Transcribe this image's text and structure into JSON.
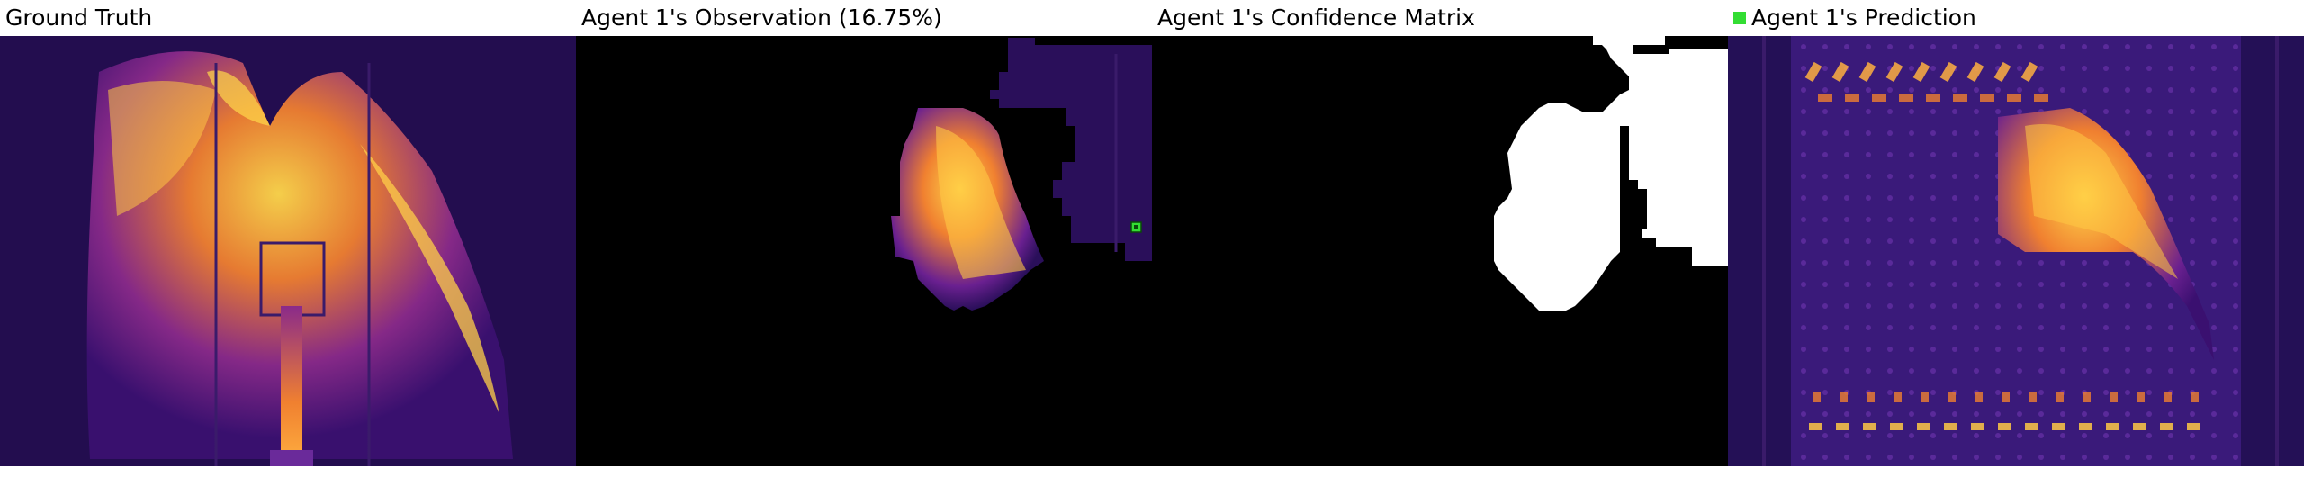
{
  "panels": [
    {
      "title": "Ground Truth"
    },
    {
      "title": "Agent 1's Observation (16.75%)"
    },
    {
      "title": "Agent 1's Confidence Matrix"
    },
    {
      "title": "Agent 1's Prediction"
    }
  ],
  "legend": {
    "agent_color": "#33dd33"
  },
  "colors": {
    "background_dark": "#1a0a40",
    "mid_purple": "#4b1a8a",
    "hot_orange": "#f08030",
    "hot_yellow": "#ffd84a",
    "confidence_white": "#ffffff",
    "mask_black": "#000000"
  }
}
